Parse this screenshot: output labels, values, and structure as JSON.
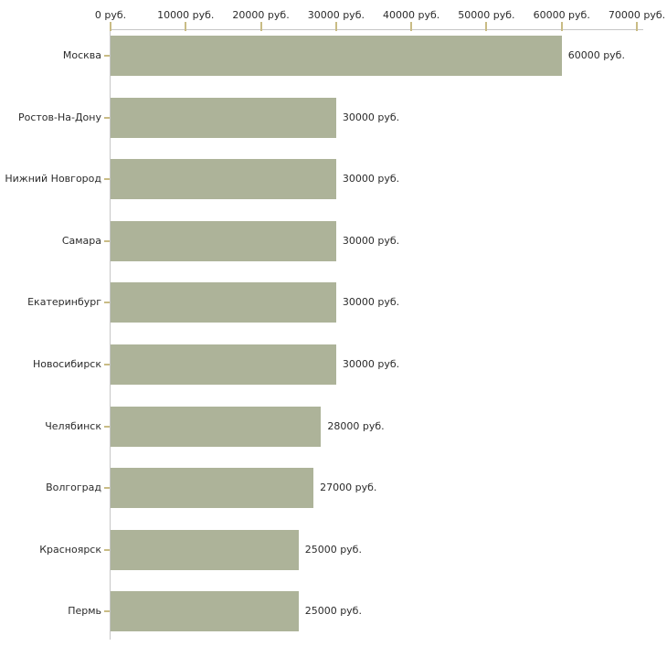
{
  "chart_data": {
    "type": "bar",
    "orientation": "horizontal",
    "title": "",
    "xlabel": "",
    "ylabel": "",
    "categories": [
      "Москва",
      "Ростов-На-Дону",
      "Нижний Новгород",
      "Самара",
      "Екатеринбург",
      "Новосибирск",
      "Челябинск",
      "Волгоград",
      "Красноярск",
      "Пермь"
    ],
    "values": [
      60000,
      30000,
      30000,
      30000,
      30000,
      30000,
      28000,
      27000,
      25000,
      25000
    ],
    "value_labels": [
      "60000 руб.",
      "30000 руб.",
      "30000 руб.",
      "30000 руб.",
      "30000 руб.",
      "30000 руб.",
      "28000 руб.",
      "27000 руб.",
      "25000 руб.",
      "25000 руб."
    ],
    "unit": "руб.",
    "xlim": [
      0,
      70000
    ],
    "x_tick_values": [
      0,
      10000,
      20000,
      30000,
      40000,
      50000,
      60000,
      70000
    ],
    "x_tick_labels": [
      "0 руб.",
      "10000 руб.",
      "20000 руб.",
      "30000 руб.",
      "40000 руб.",
      "50000 руб.",
      "60000 руб.",
      "70000 руб."
    ],
    "grid": false,
    "legend": false,
    "colors": {
      "bar": "#adb399",
      "tick": "#c9bc85",
      "axis": "#c6c6c6",
      "text": "#2b2b2b",
      "background": "#ffffff"
    }
  }
}
